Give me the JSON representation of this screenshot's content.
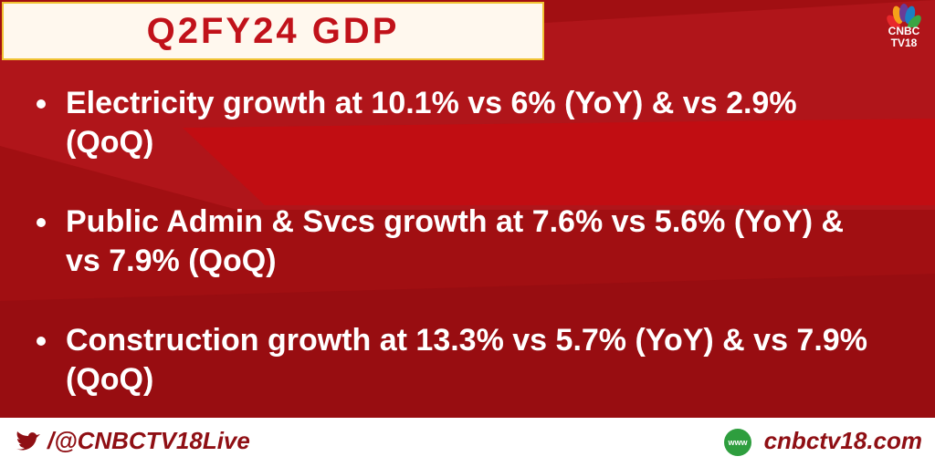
{
  "header": {
    "title": "Q2FY24 GDP"
  },
  "logo": {
    "top": "CNBC",
    "bottom": "TV18"
  },
  "bullets": [
    "Electricity growth at 10.1% vs 6% (YoY) & vs 2.9% (QoQ)",
    "Public Admin & Svcs growth at 7.6% vs 5.6% (YoY) & vs 7.9% (QoQ)",
    "Construction growth at 13.3% vs 5.7% (YoY) & vs 7.9% (QoQ)"
  ],
  "footer": {
    "handle": "/@CNBCTV18Live",
    "website": "cnbctv18.com",
    "globe": "www"
  }
}
